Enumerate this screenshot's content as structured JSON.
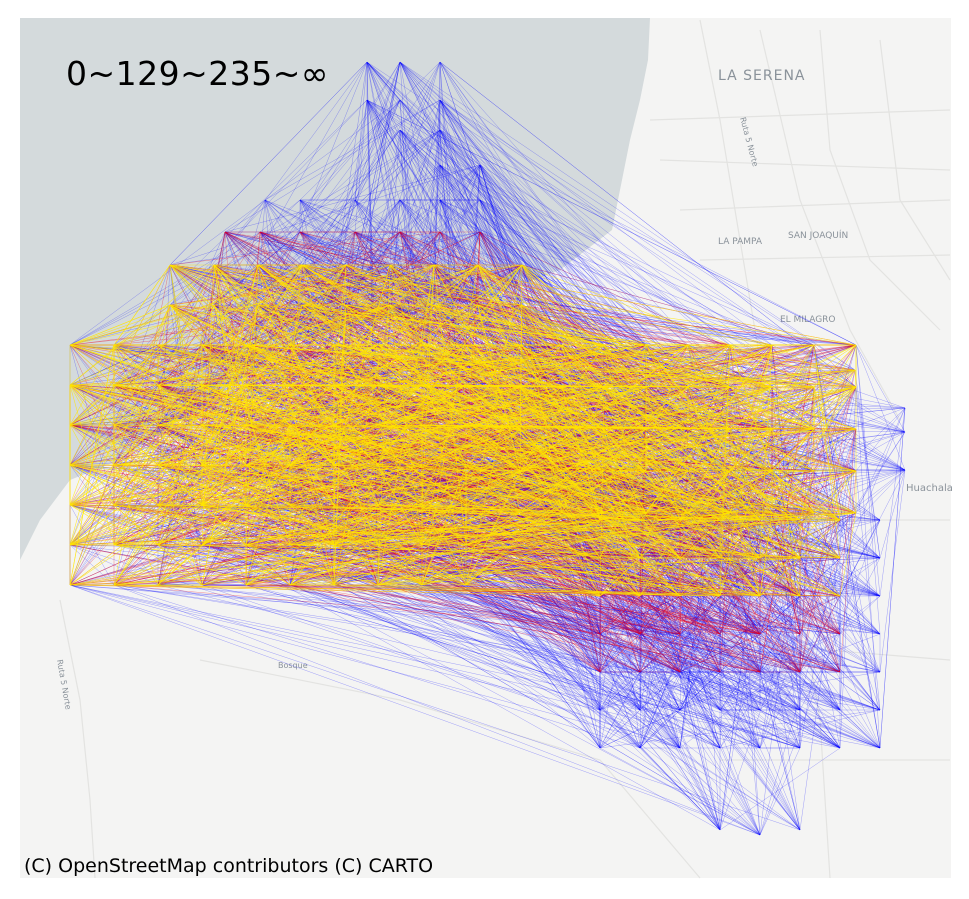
{
  "legend": {
    "title": "0~129~235~∞"
  },
  "attribution": "(C) OpenStreetMap contributors (C) CARTO",
  "place_labels": {
    "la_serena": "LA SERENA",
    "la_pampa": "LA PAMPA",
    "san_joaquin": "SAN JOAQUÍN",
    "el_milagro": "EL MILAGRO",
    "huachalalume": "Huachala",
    "ruta_5_norte": "Ruta 5 Norte",
    "ruta_5_norte_south": "Ruta 5 Norte",
    "bosque": "Bosque"
  },
  "colors": {
    "ocean": "#d4dadc",
    "land": "#f4f4f3",
    "low_class": "#0000ff",
    "mid_class": "#e8001c",
    "high_class": "#ffe600"
  },
  "flow_classes": [
    {
      "range": "0~129",
      "color": "#0000ff"
    },
    {
      "range": "129~235",
      "color": "#e8001c"
    },
    {
      "range": "235~∞",
      "color": "#ffe600"
    }
  ]
}
